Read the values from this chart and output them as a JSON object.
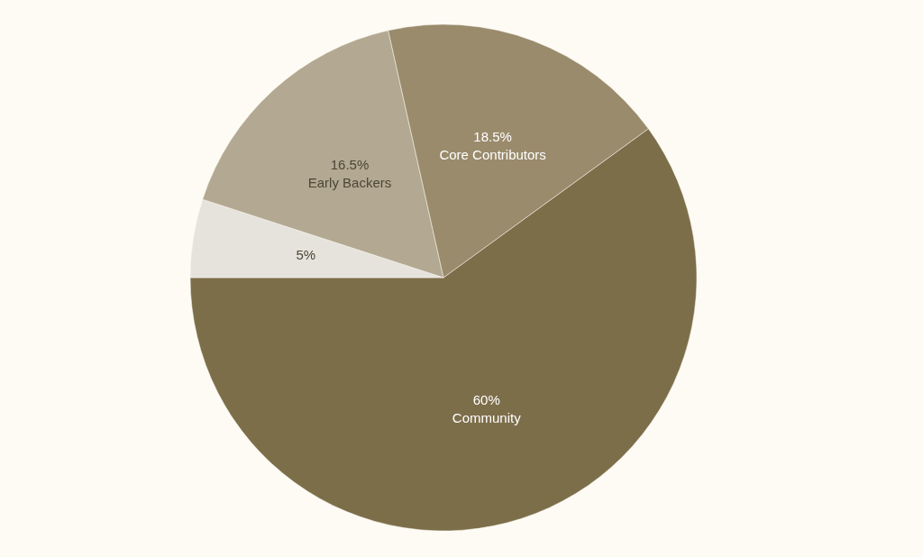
{
  "chart_data": {
    "type": "pie",
    "categories": [
      "Community",
      null,
      "Early Backers",
      "Core Contributors"
    ],
    "values": [
      60,
      5,
      16.5,
      18.5
    ],
    "value_labels": [
      "60%",
      "5%",
      "16.5%",
      "18.5%"
    ],
    "colors": [
      "#7d6e4a",
      "#e6e3dc",
      "#b3a891",
      "#9a8b6c"
    ]
  }
}
